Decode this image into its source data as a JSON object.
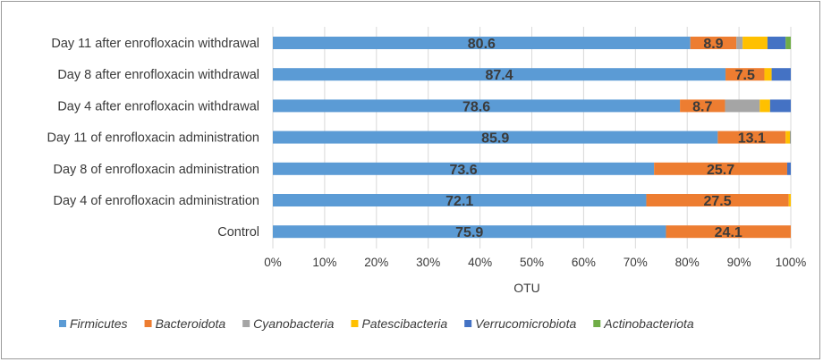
{
  "chart_data": {
    "type": "bar",
    "orientation": "horizontal",
    "stacked": true,
    "categories": [
      "Day 11 after enrofloxacin withdrawal",
      "Day 8 after enrofloxacin withdrawal",
      "Day 4 after enrofloxacin withdrawal",
      "Day 11 of enrofloxacin administration",
      "Day 8 of enrofloxacin administration",
      "Day 4 of enrofloxacin administration",
      "Control"
    ],
    "series": [
      {
        "name": "Firmicutes",
        "color": "#5b9bd5",
        "values": [
          80.6,
          87.4,
          78.6,
          85.9,
          73.6,
          72.1,
          75.9
        ],
        "labels": [
          "80.6",
          "87.4",
          "78.6",
          "85.9",
          "73.6",
          "72.1",
          "75.9"
        ]
      },
      {
        "name": "Bacteroidota",
        "color": "#ed7d31",
        "values": [
          8.9,
          7.5,
          8.7,
          13.1,
          25.7,
          27.5,
          24.1
        ],
        "labels": [
          "8.9",
          "7.5",
          "8.7",
          "13.1",
          "25.7",
          "27.5",
          "24.1"
        ]
      },
      {
        "name": "Cyanobacteria",
        "color": "#a5a5a5",
        "values": [
          1.2,
          0.0,
          6.7,
          0.0,
          0.0,
          0.0,
          0.0
        ],
        "labels": [
          "",
          "",
          "",
          "",
          "",
          "",
          ""
        ]
      },
      {
        "name": "Patescibacteria",
        "color": "#ffc000",
        "values": [
          4.8,
          1.4,
          2.0,
          0.9,
          0.0,
          0.4,
          0.0
        ],
        "labels": [
          "",
          "",
          "",
          "",
          "",
          "",
          ""
        ]
      },
      {
        "name": "Verrucomicrobiota",
        "color": "#4472c4",
        "values": [
          3.5,
          3.7,
          4.0,
          0.1,
          0.7,
          0.0,
          0.0
        ],
        "labels": [
          "",
          "",
          "",
          "",
          "",
          "",
          ""
        ]
      },
      {
        "name": "Actinobacteriota",
        "color": "#70ad47",
        "values": [
          1.0,
          0.0,
          0.0,
          0.0,
          0.0,
          0.0,
          0.0
        ],
        "labels": [
          "",
          "",
          "",
          "",
          "",
          "",
          ""
        ]
      }
    ],
    "xlim": [
      0,
      100
    ],
    "xticks": [
      "0%",
      "10%",
      "20%",
      "30%",
      "40%",
      "50%",
      "60%",
      "70%",
      "80%",
      "90%",
      "100%"
    ],
    "xlabel": "OTU",
    "grid": true,
    "legend": "bottom"
  }
}
